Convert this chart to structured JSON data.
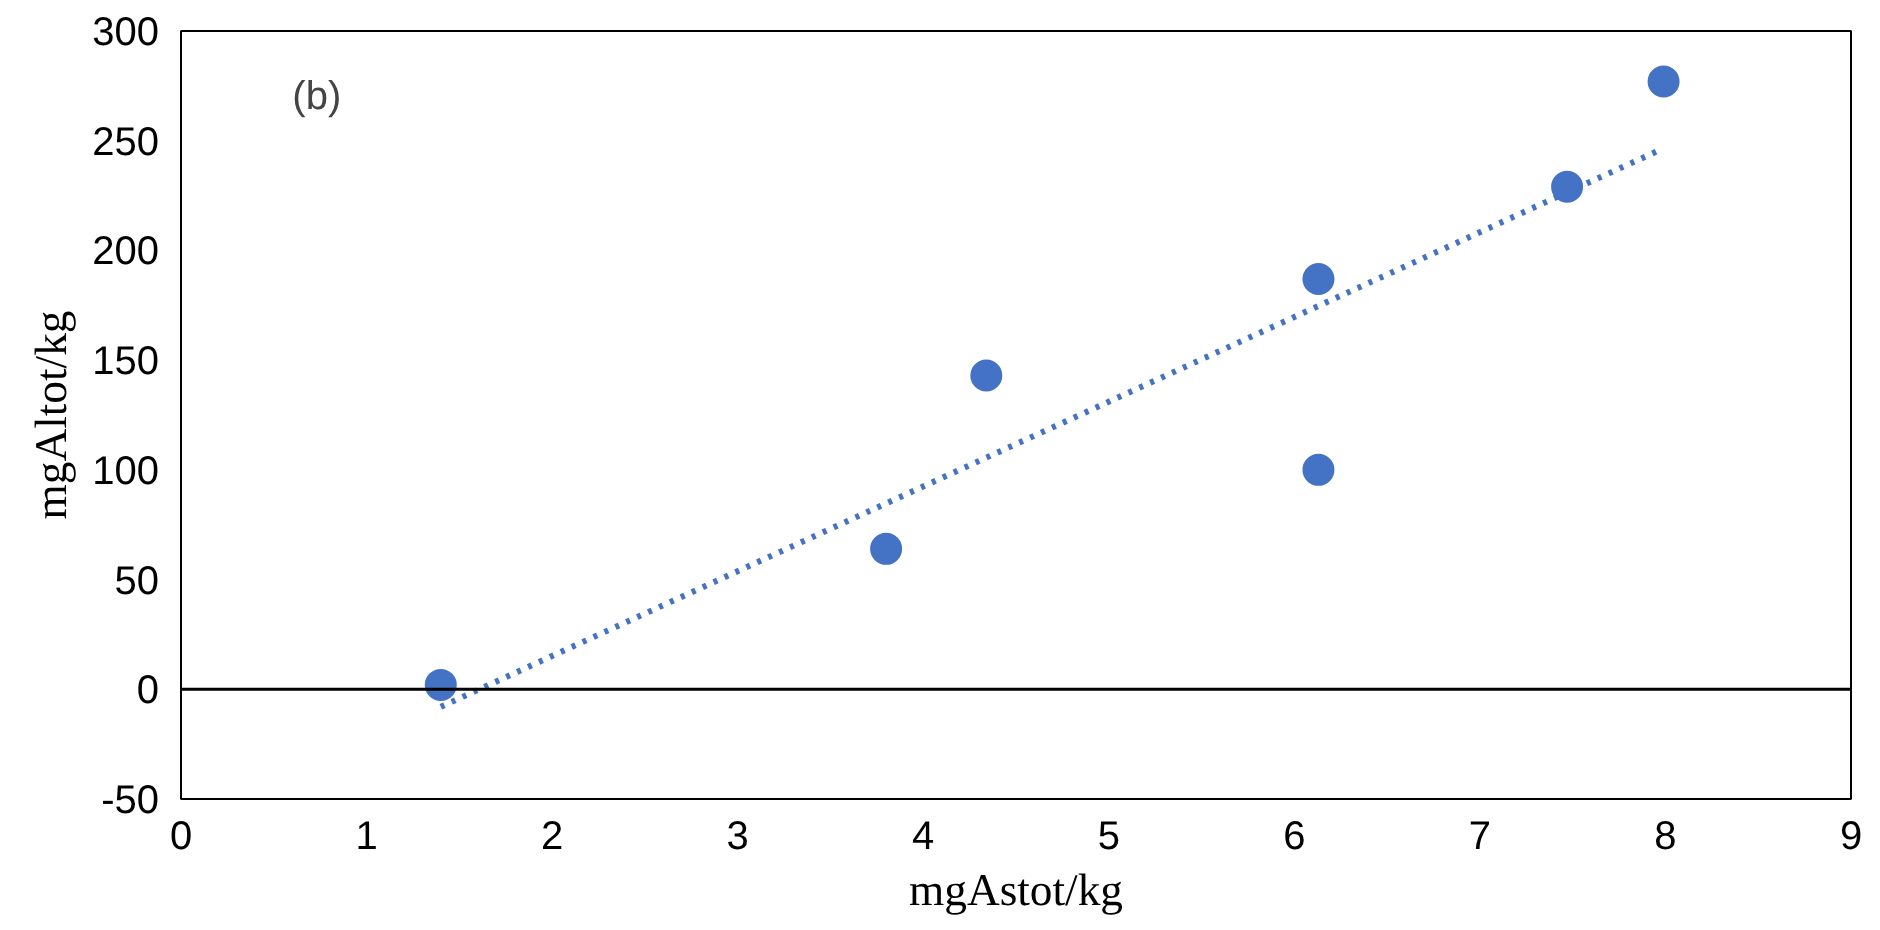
{
  "chart_data": {
    "type": "scatter",
    "xlabel": "mgAstot/kg",
    "ylabel": "mgAltot/kg",
    "annotations": [
      "(b)"
    ],
    "xlim": [
      0,
      9
    ],
    "xticks": [
      0,
      1,
      2,
      3,
      4,
      5,
      6,
      7,
      8,
      9
    ],
    "ylim": [
      -50,
      300
    ],
    "yticks": [
      -50,
      0,
      50,
      100,
      150,
      200,
      250,
      300
    ],
    "grid": false,
    "marker": "circle",
    "ref_lines": [
      {
        "axis": "y",
        "value": 0,
        "color": "#000000"
      }
    ],
    "series": [
      {
        "color": "#4472c4",
        "x": [
          1.4,
          3.8,
          4.34,
          6.13,
          6.13,
          7.47,
          7.99
        ],
        "values": [
          2,
          64,
          143,
          187,
          100,
          229,
          277
        ]
      },
      {
        "type": "line",
        "color": "#4472c4",
        "line_style": "dotted",
        "marker": "none",
        "x": [
          1.4,
          7.95
        ],
        "values": [
          -8,
          245
        ]
      }
    ]
  }
}
